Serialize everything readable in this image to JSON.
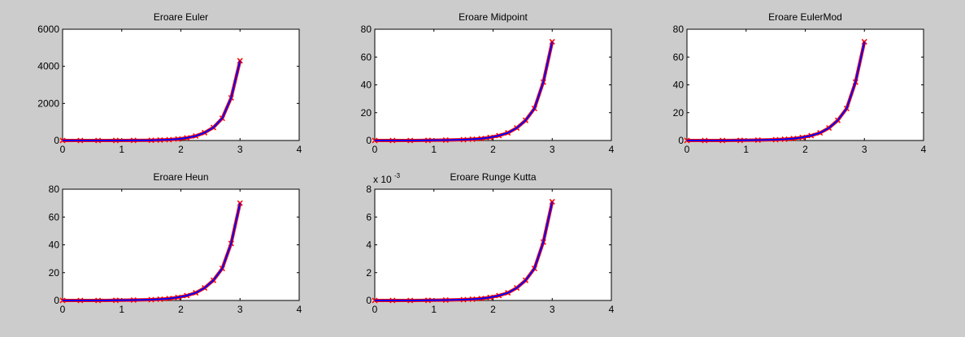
{
  "figure": {
    "background": "#cccccc",
    "axes_background": "#ffffff"
  },
  "chart_data": [
    {
      "type": "line",
      "title": "Eroare Euler",
      "xlabel": "",
      "ylabel": "",
      "xlim": [
        0,
        4
      ],
      "ylim": [
        0,
        6000
      ],
      "xticks": [
        0,
        1,
        2,
        3,
        4
      ],
      "yticks": [
        0,
        2000,
        4000,
        6000
      ],
      "ytick_labels": [
        "0",
        "2000",
        "4000",
        "6000"
      ],
      "exponent_label": null,
      "series": [
        {
          "color": "#ff0000",
          "marker": "x",
          "x": [
            0,
            0.3,
            0.6,
            0.9,
            1.2,
            1.5,
            1.65,
            1.8,
            1.95,
            2.1,
            2.25,
            2.4,
            2.55,
            2.7,
            2.85,
            3.0
          ],
          "y": [
            0,
            0,
            0,
            2,
            6,
            12,
            25,
            45,
            80,
            140,
            240,
            420,
            700,
            1200,
            2300,
            4300
          ]
        },
        {
          "color": "#0000ff",
          "marker": "",
          "x": [
            0,
            0.3,
            0.6,
            0.9,
            1.2,
            1.5,
            1.65,
            1.8,
            1.95,
            2.1,
            2.25,
            2.4,
            2.55,
            2.7,
            2.85,
            3.0
          ],
          "y": [
            0,
            0,
            0,
            2,
            6,
            12,
            25,
            45,
            80,
            140,
            240,
            420,
            700,
            1200,
            2300,
            4300
          ]
        }
      ]
    },
    {
      "type": "line",
      "title": "Eroare Midpoint",
      "xlabel": "",
      "ylabel": "",
      "xlim": [
        0,
        4
      ],
      "ylim": [
        0,
        80
      ],
      "xticks": [
        0,
        1,
        2,
        3,
        4
      ],
      "yticks": [
        0,
        20,
        40,
        60,
        80
      ],
      "ytick_labels": [
        "0",
        "20",
        "40",
        "60",
        "80"
      ],
      "exponent_label": null,
      "series": [
        {
          "color": "#ff0000",
          "marker": "x",
          "x": [
            0,
            0.3,
            0.6,
            0.9,
            1.2,
            1.5,
            1.65,
            1.8,
            1.95,
            2.1,
            2.25,
            2.4,
            2.55,
            2.7,
            2.85,
            3.0
          ],
          "y": [
            0,
            0,
            0,
            0.1,
            0.3,
            0.6,
            0.9,
            1.4,
            2.2,
            3.5,
            5.5,
            9,
            14.5,
            23,
            42,
            71
          ]
        },
        {
          "color": "#0000ff",
          "marker": "",
          "x": [
            0,
            0.3,
            0.6,
            0.9,
            1.2,
            1.5,
            1.65,
            1.8,
            1.95,
            2.1,
            2.25,
            2.4,
            2.55,
            2.7,
            2.85,
            3.0
          ],
          "y": [
            0,
            0,
            0,
            0.1,
            0.3,
            0.6,
            0.9,
            1.4,
            2.2,
            3.5,
            5.5,
            9,
            14.5,
            23,
            42,
            71
          ]
        }
      ]
    },
    {
      "type": "line",
      "title": "Eroare EulerMod",
      "xlabel": "",
      "ylabel": "",
      "xlim": [
        0,
        4
      ],
      "ylim": [
        0,
        80
      ],
      "xticks": [
        0,
        1,
        2,
        3,
        4
      ],
      "yticks": [
        0,
        20,
        40,
        60,
        80
      ],
      "ytick_labels": [
        "0",
        "20",
        "40",
        "60",
        "80"
      ],
      "exponent_label": null,
      "series": [
        {
          "color": "#ff0000",
          "marker": "x",
          "x": [
            0,
            0.3,
            0.6,
            0.9,
            1.2,
            1.5,
            1.65,
            1.8,
            1.95,
            2.1,
            2.25,
            2.4,
            2.55,
            2.7,
            2.85,
            3.0
          ],
          "y": [
            0,
            0,
            0,
            0.1,
            0.3,
            0.6,
            0.9,
            1.4,
            2.2,
            3.5,
            5.5,
            9,
            14.5,
            23,
            42,
            71
          ]
        },
        {
          "color": "#0000ff",
          "marker": "",
          "x": [
            0,
            0.3,
            0.6,
            0.9,
            1.2,
            1.5,
            1.65,
            1.8,
            1.95,
            2.1,
            2.25,
            2.4,
            2.55,
            2.7,
            2.85,
            3.0
          ],
          "y": [
            0,
            0,
            0,
            0.1,
            0.3,
            0.6,
            0.9,
            1.4,
            2.2,
            3.5,
            5.5,
            9,
            14.5,
            23,
            42,
            71
          ]
        }
      ]
    },
    {
      "type": "line",
      "title": "Eroare Heun",
      "xlabel": "",
      "ylabel": "",
      "xlim": [
        0,
        4
      ],
      "ylim": [
        0,
        80
      ],
      "xticks": [
        0,
        1,
        2,
        3,
        4
      ],
      "yticks": [
        0,
        20,
        40,
        60,
        80
      ],
      "ytick_labels": [
        "0",
        "20",
        "40",
        "60",
        "80"
      ],
      "exponent_label": null,
      "series": [
        {
          "color": "#ff0000",
          "marker": "x",
          "x": [
            0,
            0.3,
            0.6,
            0.9,
            1.2,
            1.5,
            1.65,
            1.8,
            1.95,
            2.1,
            2.25,
            2.4,
            2.55,
            2.7,
            2.85,
            3.0
          ],
          "y": [
            0,
            0,
            0,
            0.1,
            0.3,
            0.6,
            0.9,
            1.4,
            2.2,
            3.5,
            5.5,
            9,
            14.5,
            23,
            41,
            70
          ]
        },
        {
          "color": "#0000ff",
          "marker": "",
          "x": [
            0,
            0.3,
            0.6,
            0.9,
            1.2,
            1.5,
            1.65,
            1.8,
            1.95,
            2.1,
            2.25,
            2.4,
            2.55,
            2.7,
            2.85,
            3.0
          ],
          "y": [
            0,
            0,
            0,
            0.1,
            0.3,
            0.6,
            0.9,
            1.4,
            2.2,
            3.5,
            5.5,
            9,
            14.5,
            23,
            41,
            70
          ]
        }
      ]
    },
    {
      "type": "line",
      "title": "Eroare Runge Kutta",
      "xlabel": "",
      "ylabel": "",
      "xlim": [
        0,
        4
      ],
      "ylim": [
        0,
        8
      ],
      "xticks": [
        0,
        1,
        2,
        3,
        4
      ],
      "yticks": [
        0,
        2,
        4,
        6,
        8
      ],
      "ytick_labels": [
        "0",
        "2",
        "4",
        "6",
        "8"
      ],
      "exponent_label": {
        "base": "x 10",
        "exponent": "-3"
      },
      "series": [
        {
          "color": "#ff0000",
          "marker": "x",
          "x": [
            0,
            0.3,
            0.6,
            0.9,
            1.2,
            1.5,
            1.65,
            1.8,
            1.95,
            2.1,
            2.25,
            2.4,
            2.55,
            2.7,
            2.85,
            3.0
          ],
          "y": [
            0,
            0,
            0,
            0.01,
            0.03,
            0.06,
            0.09,
            0.14,
            0.22,
            0.35,
            0.55,
            0.9,
            1.45,
            2.3,
            4.2,
            7.1
          ]
        },
        {
          "color": "#0000ff",
          "marker": "",
          "x": [
            0,
            0.3,
            0.6,
            0.9,
            1.2,
            1.5,
            1.65,
            1.8,
            1.95,
            2.1,
            2.25,
            2.4,
            2.55,
            2.7,
            2.85,
            3.0
          ],
          "y": [
            0,
            0,
            0,
            0.01,
            0.03,
            0.06,
            0.09,
            0.14,
            0.22,
            0.35,
            0.55,
            0.9,
            1.45,
            2.3,
            4.2,
            7.1
          ]
        }
      ]
    }
  ]
}
